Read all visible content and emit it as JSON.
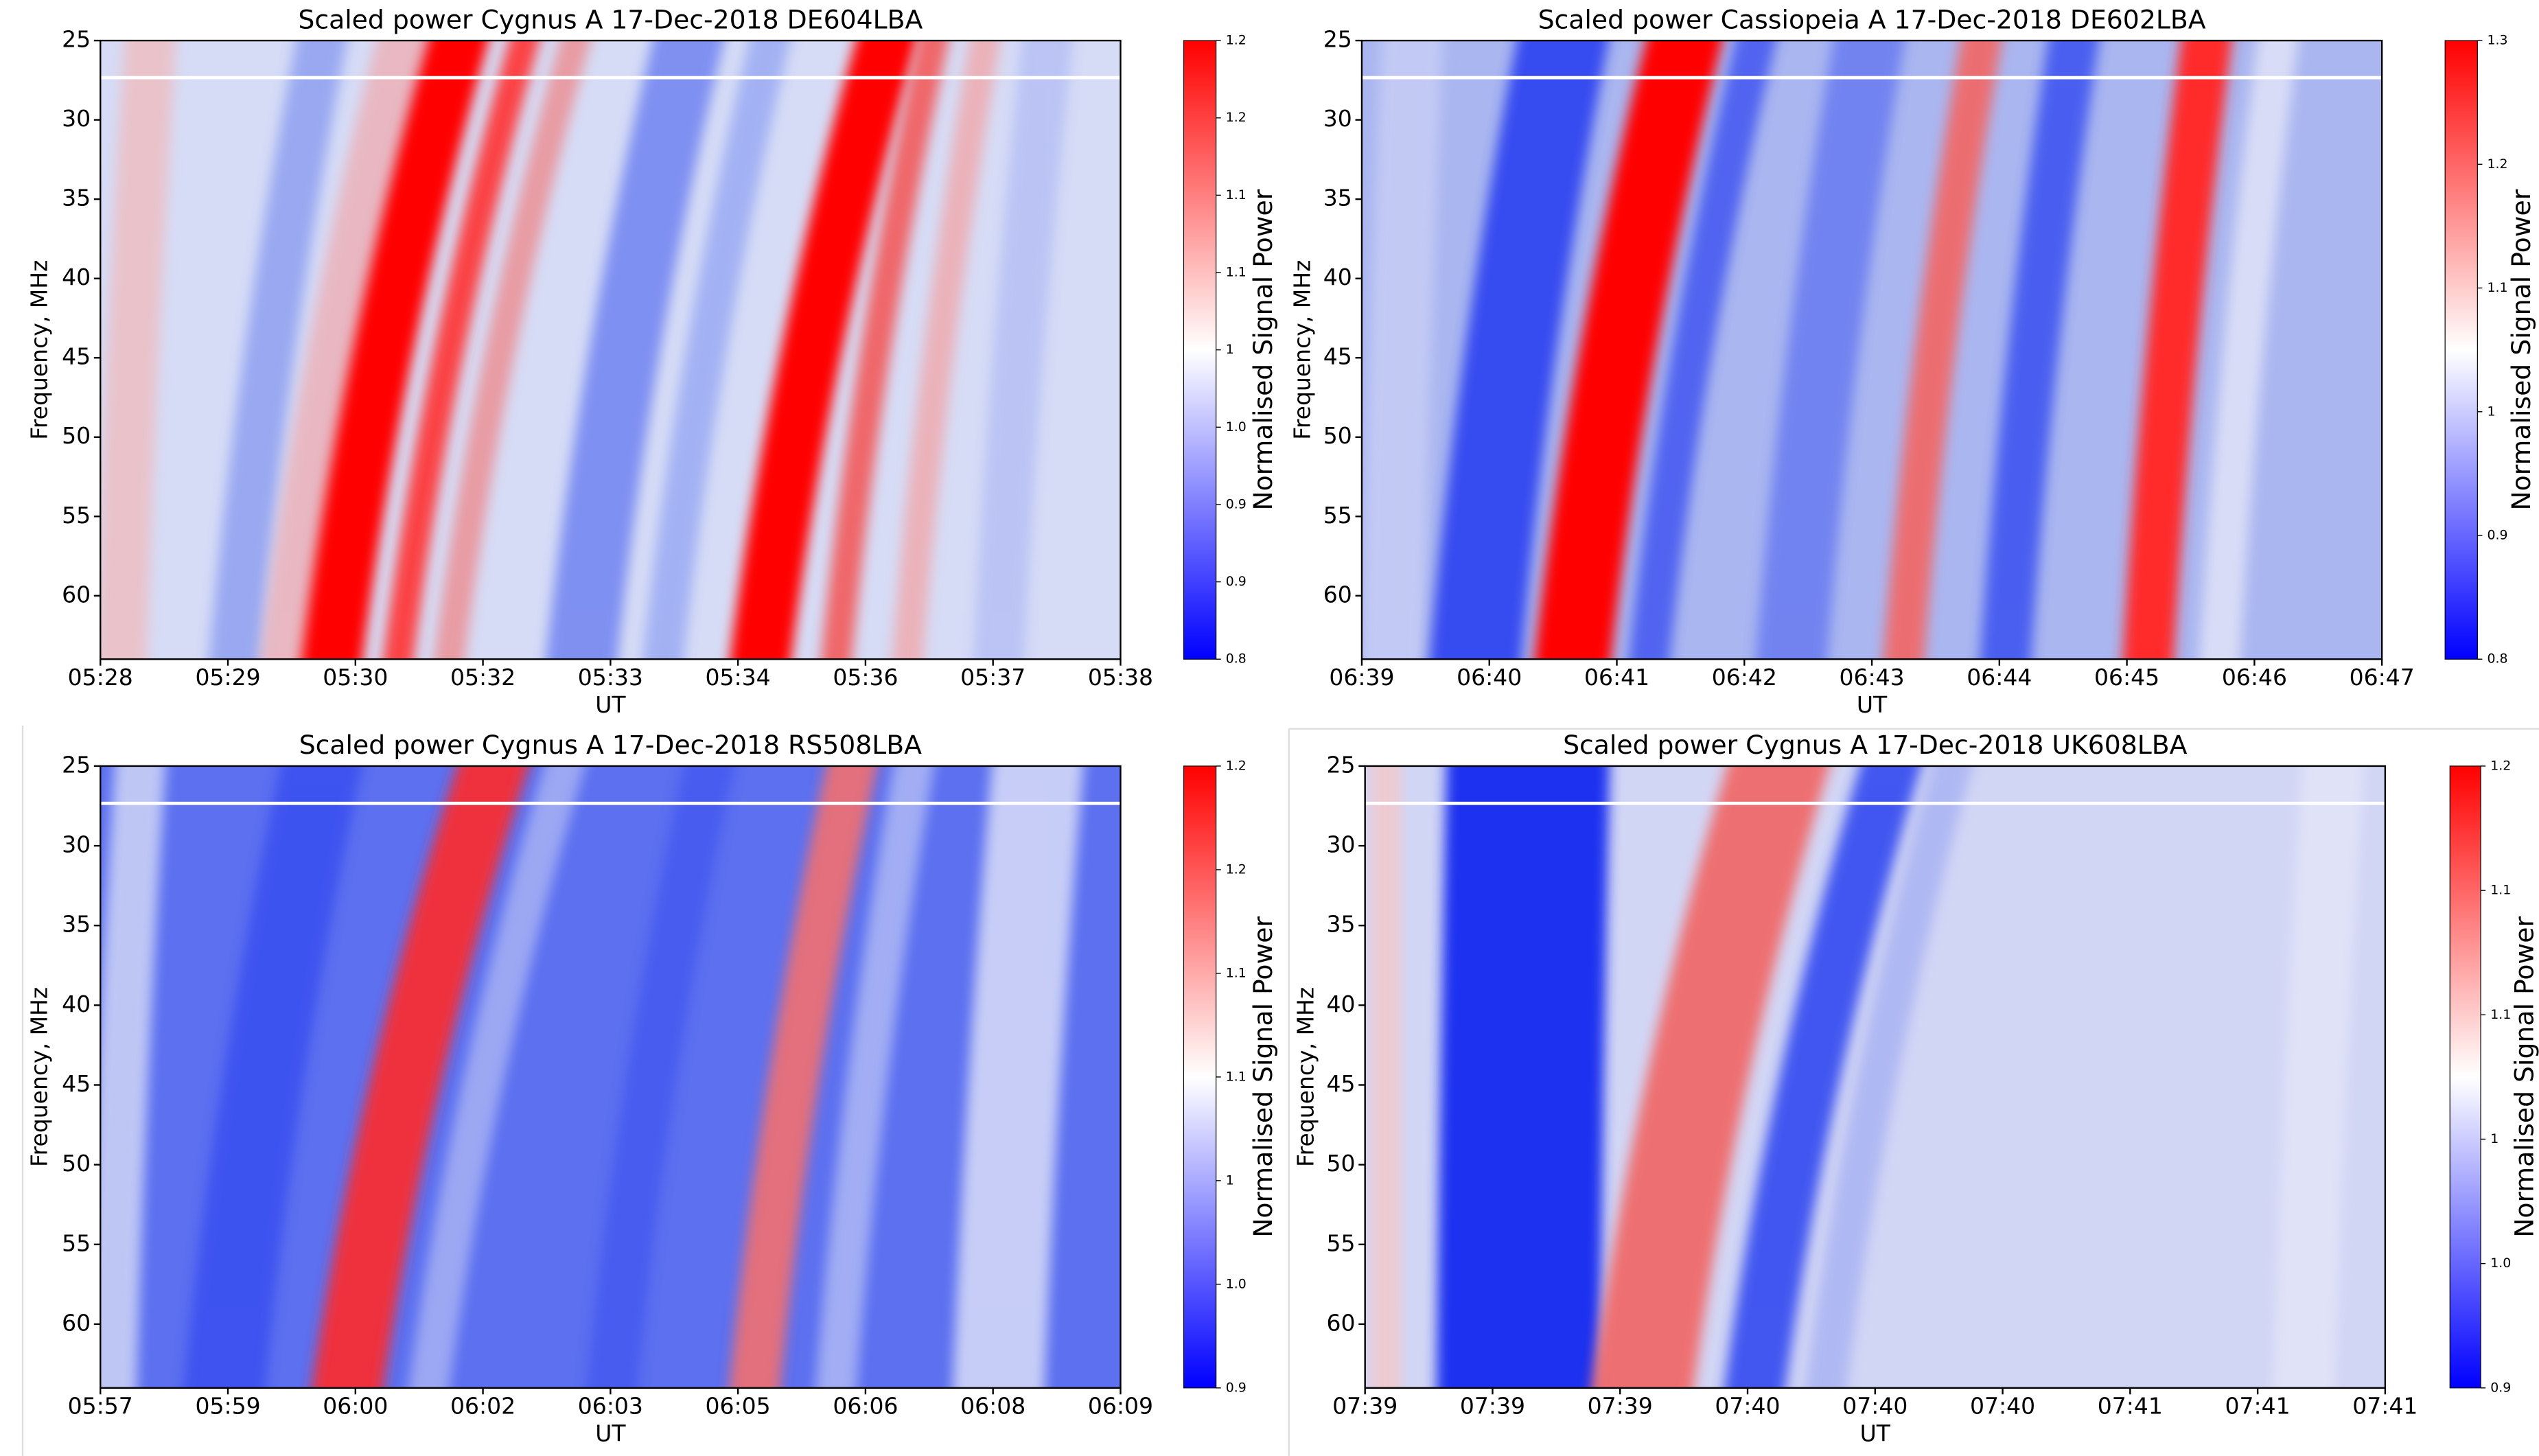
{
  "chart_data": [
    {
      "type": "heatmap",
      "title": "Scaled power Cygnus A 17-Dec-2018 DE604LBA",
      "xlabel": "UT",
      "ylabel": "Frequency, MHz",
      "categories": [
        "05:28",
        "05:29",
        "05:30",
        "05:32",
        "05:33",
        "05:34",
        "05:36",
        "05:37",
        "05:38"
      ],
      "ylim": [
        25,
        64
      ],
      "y_inverted": true,
      "yticks": [
        25,
        30,
        35,
        40,
        45,
        50,
        55,
        60
      ],
      "colorbar": {
        "label": "Normalised Signal Power",
        "lim": [
          0.8,
          1.2
        ],
        "cmap": [
          "#0000ff",
          "#ffffff",
          "#ff0000"
        ],
        "ticks": [
          0.8,
          {
            "value": 0.85,
            "label": "0.9"
          },
          0.9,
          {
            "value": 0.95,
            "label": "1.0"
          },
          1.0,
          {
            "value": 1.05,
            "label": "1.1"
          },
          1.1,
          {
            "value": 1.15,
            "label": "1.2"
          },
          1.2
        ]
      }
    },
    {
      "type": "heatmap",
      "title": "Scaled power Cassiopeia A 17-Dec-2018 DE602LBA",
      "xlabel": "UT",
      "ylabel": "Frequency, MHz",
      "categories": [
        "06:39",
        "06:40",
        "06:41",
        "06:42",
        "06:43",
        "06:44",
        "06:45",
        "06:46",
        "06:47"
      ],
      "ylim": [
        25,
        64
      ],
      "y_inverted": true,
      "yticks": [
        25,
        30,
        35,
        40,
        45,
        50,
        55,
        60
      ],
      "colorbar": {
        "label": "Normalised Signal Power",
        "lim": [
          0.8,
          1.3
        ],
        "cmap": [
          "#0000ff",
          "#ffffff",
          "#ff0000"
        ],
        "ticks": [
          0.8,
          0.9,
          1.0,
          1.1,
          1.2,
          1.3
        ]
      }
    },
    {
      "type": "heatmap",
      "title": "Scaled power Cygnus A 17-Dec-2018 RS508LBA",
      "xlabel": "UT",
      "ylabel": "Frequency, MHz",
      "categories": [
        "05:57",
        "05:59",
        "06:00",
        "06:02",
        "06:03",
        "06:05",
        "06:06",
        "06:08",
        "06:09"
      ],
      "ylim": [
        25,
        64
      ],
      "y_inverted": true,
      "yticks": [
        25,
        30,
        35,
        40,
        45,
        50,
        55,
        60
      ],
      "colorbar": {
        "label": "Normalised Signal Power",
        "lim": [
          0.9,
          1.2
        ],
        "cmap": [
          "#0000ff",
          "#ffffff",
          "#ff0000"
        ],
        "ticks": [
          0.9,
          {
            "value": 0.95,
            "label": "1.0"
          },
          1.0,
          {
            "value": 1.05,
            "label": "1.1"
          },
          1.1,
          {
            "value": 1.15,
            "label": "1.2"
          },
          1.2
        ]
      }
    },
    {
      "type": "heatmap",
      "title": "Scaled power Cygnus A 17-Dec-2018 UK608LBA",
      "xlabel": "UT",
      "ylabel": "Frequency, MHz",
      "categories": [
        "07:39",
        "07:39",
        "07:39",
        "07:40",
        "07:40",
        "07:40",
        "07:41",
        "07:41",
        "07:41"
      ],
      "ylim": [
        25,
        64
      ],
      "y_inverted": true,
      "yticks": [
        25,
        30,
        35,
        40,
        45,
        50,
        55,
        60
      ],
      "colorbar": {
        "label": "Normalised Signal Power",
        "lim": [
          0.9,
          1.15
        ],
        "cmap": [
          "#0000ff",
          "#ffffff",
          "#ff0000"
        ],
        "ticks": [
          0.9,
          {
            "value": 0.95,
            "label": "1.0"
          },
          1.0,
          {
            "value": 1.05,
            "label": "1.1"
          },
          1.1,
          {
            "value": 1.15,
            "label": "1.2"
          }
        ]
      }
    }
  ]
}
